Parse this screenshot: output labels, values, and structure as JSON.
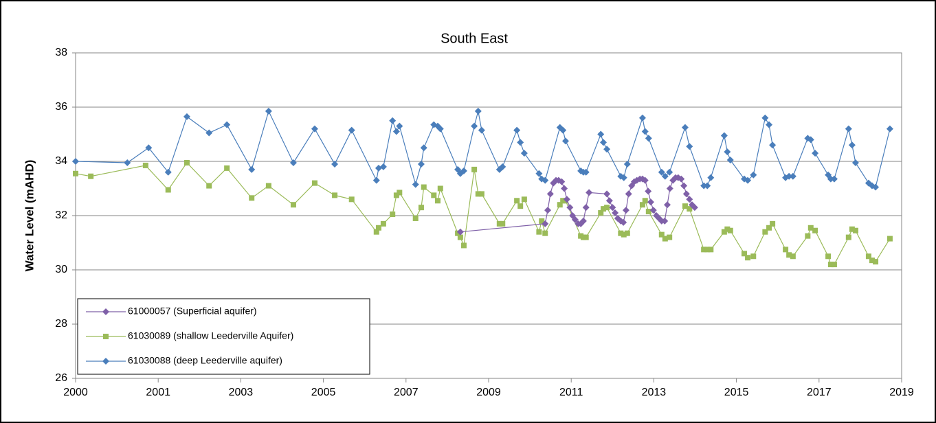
{
  "chart_data": {
    "type": "line",
    "title": "South East",
    "y_label": "Water Level (mAHD)",
    "xlim": [
      2000,
      2019
    ],
    "xticks": [
      2000,
      {
        "value": 2001.9,
        "label": "2001"
      },
      {
        "value": 2003.8,
        "label": "2003"
      },
      {
        "value": 2005.7,
        "label": "2005"
      },
      {
        "value": 2007.6,
        "label": "2007"
      },
      {
        "value": 2009.5,
        "label": "2009"
      },
      {
        "value": 2011.4,
        "label": "2011"
      },
      {
        "value": 2013.3,
        "label": "2013"
      },
      {
        "value": 2015.2,
        "label": "2015"
      },
      {
        "value": 2017.1,
        "label": "2017"
      },
      2019
    ],
    "ylim": [
      26,
      38
    ],
    "yticks": [
      26,
      28,
      30,
      32,
      34,
      36,
      38
    ],
    "grid": true,
    "legend_position": "lower left",
    "series": [
      {
        "name": "61000057 (Superficial aquifer)",
        "color": "#7f60a8",
        "marker": "diamond",
        "x": [
          2008.85,
          2010.8,
          2010.86,
          2010.92,
          2010.99,
          2011.05,
          2011.11,
          2011.18,
          2011.24,
          2011.3,
          2011.37,
          2011.43,
          2011.49,
          2011.56,
          2011.62,
          2011.68,
          2011.74,
          2011.81,
          2012.22,
          2012.28,
          2012.35,
          2012.41,
          2012.47,
          2012.54,
          2012.6,
          2012.66,
          2012.72,
          2012.79,
          2012.85,
          2012.91,
          2012.98,
          2013.04,
          2013.1,
          2013.17,
          2013.23,
          2013.29,
          2013.36,
          2013.42,
          2013.48,
          2013.55,
          2013.61,
          2013.67,
          2013.74,
          2013.8,
          2013.86,
          2013.93,
          2013.99,
          2014.05,
          2014.12,
          2014.18,
          2014.24
        ],
        "values": [
          31.4,
          31.7,
          32.2,
          32.8,
          33.2,
          33.3,
          33.3,
          33.25,
          33.0,
          32.6,
          32.3,
          32.0,
          31.85,
          31.7,
          31.7,
          31.8,
          32.3,
          32.85,
          32.8,
          32.55,
          32.3,
          32.1,
          31.9,
          31.8,
          31.75,
          32.2,
          32.8,
          33.1,
          33.25,
          33.3,
          33.35,
          33.35,
          33.3,
          32.9,
          32.5,
          32.2,
          32.0,
          31.9,
          31.8,
          31.8,
          32.4,
          33.0,
          33.3,
          33.4,
          33.4,
          33.35,
          33.1,
          32.8,
          32.6,
          32.4,
          32.3
        ]
      },
      {
        "name": "61030089 (shallow Leederville Aquifer)",
        "color": "#9bbb59",
        "marker": "square",
        "x": [
          2000.0,
          2000.35,
          2001.61,
          2002.13,
          2002.56,
          2003.07,
          2003.48,
          2004.05,
          2004.44,
          2005.01,
          2005.5,
          2005.96,
          2006.35,
          2006.92,
          2006.97,
          2007.08,
          2007.29,
          2007.38,
          2007.45,
          2007.82,
          2007.95,
          2008.01,
          2008.24,
          2008.33,
          2008.39,
          2008.79,
          2008.85,
          2008.93,
          2009.17,
          2009.26,
          2009.34,
          2009.75,
          2009.82,
          2010.15,
          2010.23,
          2010.32,
          2010.66,
          2010.72,
          2010.8,
          2011.14,
          2011.21,
          2011.27,
          2011.62,
          2011.68,
          2011.74,
          2012.08,
          2012.14,
          2012.22,
          2012.54,
          2012.61,
          2012.69,
          2013.04,
          2013.1,
          2013.18,
          2013.48,
          2013.56,
          2013.66,
          2014.02,
          2014.12,
          2014.45,
          2014.53,
          2014.61,
          2014.92,
          2014.99,
          2015.06,
          2015.38,
          2015.46,
          2015.59,
          2015.86,
          2015.95,
          2016.03,
          2016.33,
          2016.41,
          2016.5,
          2016.84,
          2016.91,
          2017.01,
          2017.31,
          2017.37,
          2017.45,
          2017.78,
          2017.86,
          2017.94,
          2018.24,
          2018.32,
          2018.4,
          2018.73
        ],
        "values": [
          33.55,
          33.45,
          33.85,
          32.95,
          33.95,
          33.1,
          33.75,
          32.65,
          33.1,
          32.4,
          33.2,
          32.75,
          32.6,
          31.4,
          31.55,
          31.7,
          32.05,
          32.75,
          32.85,
          31.9,
          32.3,
          33.05,
          32.75,
          32.55,
          33.0,
          31.35,
          31.2,
          30.9,
          33.7,
          32.8,
          32.8,
          31.7,
          31.7,
          32.55,
          32.35,
          32.6,
          31.4,
          31.8,
          31.35,
          32.4,
          32.55,
          32.55,
          31.25,
          31.2,
          31.2,
          32.1,
          32.25,
          32.3,
          31.35,
          31.3,
          31.35,
          32.4,
          32.55,
          32.15,
          31.3,
          31.15,
          31.2,
          32.35,
          32.25,
          30.75,
          30.75,
          30.75,
          31.4,
          31.5,
          31.45,
          30.6,
          30.45,
          30.5,
          31.4,
          31.55,
          31.7,
          30.75,
          30.55,
          30.5,
          31.25,
          31.55,
          31.45,
          30.5,
          30.2,
          30.2,
          31.2,
          31.5,
          31.45,
          30.5,
          30.35,
          30.3,
          31.15
        ]
      },
      {
        "name": "61030088 (deep Leederville aquifer)",
        "color": "#4a7ebb",
        "marker": "diamond",
        "x": [
          2000.0,
          2001.19,
          2001.68,
          2002.13,
          2002.56,
          2003.07,
          2003.48,
          2004.05,
          2004.44,
          2005.01,
          2005.5,
          2005.96,
          2006.35,
          2006.92,
          2006.97,
          2007.08,
          2007.29,
          2007.38,
          2007.45,
          2007.82,
          2007.95,
          2008.01,
          2008.24,
          2008.33,
          2008.39,
          2008.79,
          2008.85,
          2008.93,
          2009.17,
          2009.26,
          2009.34,
          2009.75,
          2009.82,
          2010.15,
          2010.23,
          2010.32,
          2010.66,
          2010.72,
          2010.8,
          2011.14,
          2011.21,
          2011.27,
          2011.62,
          2011.68,
          2011.74,
          2012.08,
          2012.14,
          2012.22,
          2012.54,
          2012.61,
          2012.69,
          2013.04,
          2013.1,
          2013.18,
          2013.48,
          2013.56,
          2013.66,
          2014.02,
          2014.12,
          2014.45,
          2014.53,
          2014.61,
          2014.92,
          2014.99,
          2015.06,
          2015.38,
          2015.46,
          2015.59,
          2015.86,
          2015.95,
          2016.03,
          2016.33,
          2016.41,
          2016.5,
          2016.84,
          2016.91,
          2017.01,
          2017.31,
          2017.37,
          2017.45,
          2017.78,
          2017.86,
          2017.94,
          2018.24,
          2018.32,
          2018.4,
          2018.73
        ],
        "values": [
          34.0,
          33.95,
          34.5,
          33.6,
          35.65,
          35.05,
          35.35,
          33.7,
          35.85,
          33.95,
          35.2,
          33.9,
          35.15,
          33.3,
          33.75,
          33.8,
          35.5,
          35.1,
          35.3,
          33.15,
          33.9,
          34.5,
          35.35,
          35.3,
          35.2,
          33.7,
          33.55,
          33.65,
          35.3,
          35.85,
          35.15,
          33.7,
          33.8,
          35.15,
          34.7,
          34.3,
          33.55,
          33.35,
          33.3,
          35.25,
          35.15,
          34.75,
          33.65,
          33.6,
          33.6,
          35.0,
          34.7,
          34.45,
          33.45,
          33.4,
          33.9,
          35.6,
          35.1,
          34.85,
          33.6,
          33.45,
          33.6,
          35.25,
          34.55,
          33.1,
          33.1,
          33.4,
          34.95,
          34.35,
          34.05,
          33.35,
          33.3,
          33.5,
          35.6,
          35.35,
          34.6,
          33.4,
          33.45,
          33.45,
          34.85,
          34.8,
          34.3,
          33.5,
          33.35,
          33.35,
          35.2,
          34.6,
          33.95,
          33.2,
          33.1,
          33.05,
          35.2
        ]
      }
    ]
  }
}
